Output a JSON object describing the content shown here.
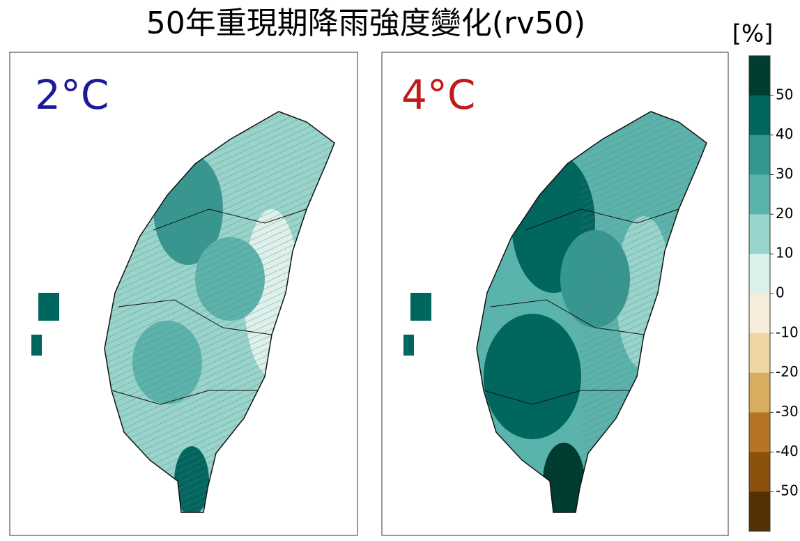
{
  "title": "50年重現期降雨強度變化(rv50)",
  "unit": "[%]",
  "panels": [
    {
      "label": "2°C",
      "color": "#1a1a9a"
    },
    {
      "label": "4°C",
      "color": "#c01a1a"
    }
  ],
  "colorbar": {
    "range": [
      -60,
      60
    ],
    "ticks": [
      50,
      40,
      30,
      20,
      10,
      0,
      -10,
      -20,
      -30,
      -40,
      -50
    ],
    "colors": [
      "#003c30",
      "#01665e",
      "#35978f",
      "#5ab4ac",
      "#97d4cb",
      "#dcf0ec",
      "#f6ecd9",
      "#efd7a4",
      "#d9ad5f",
      "#b87426",
      "#8c510a",
      "#543005"
    ]
  }
}
